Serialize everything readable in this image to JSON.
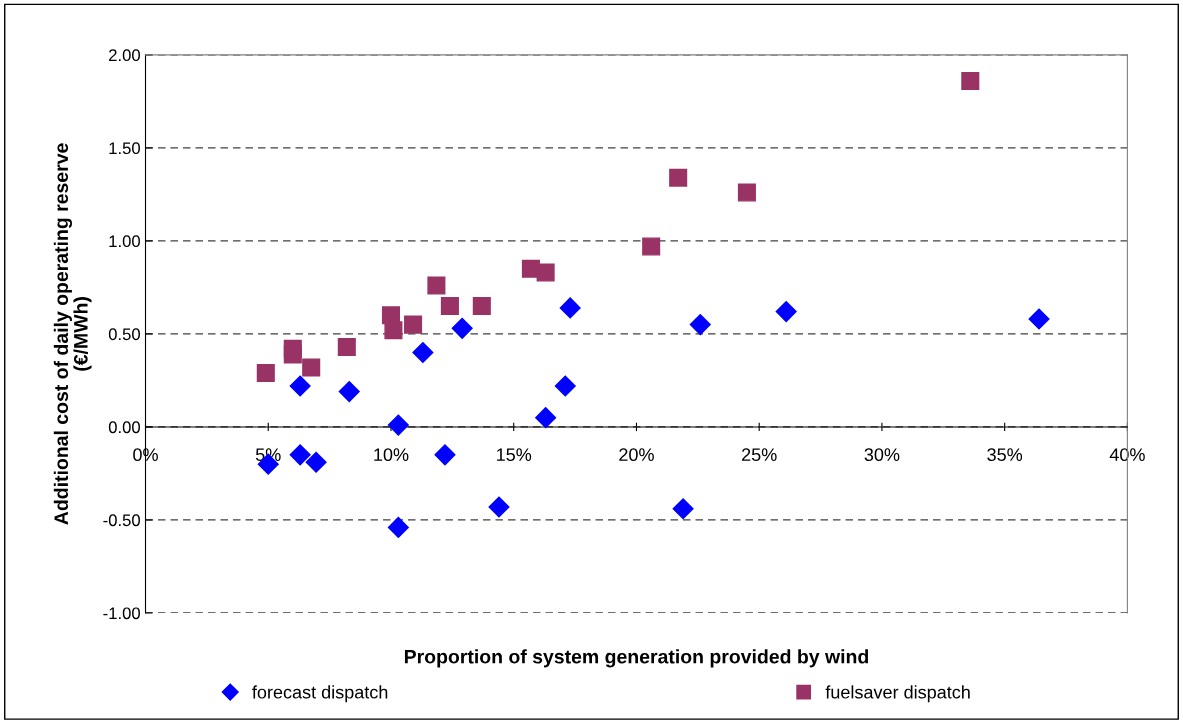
{
  "chart_data": {
    "type": "scatter",
    "xlabel": "Proportion of system generation provided by wind",
    "ylabel": "Additional cost of daily operating reserve\n(€/MWh)",
    "series": [
      {
        "name": "forecast dispatch",
        "color": "#0000ff",
        "marker": "diamond",
        "x": [
          5.0,
          6.3,
          6.3,
          6.95,
          8.3,
          10.3,
          10.3,
          11.3,
          12.2,
          12.9,
          14.4,
          16.3,
          17.3,
          17.1,
          22.6,
          26.1,
          36.4,
          21.9
        ],
        "values": [
          -0.2,
          0.22,
          -0.15,
          -0.19,
          0.19,
          0.01,
          -0.54,
          0.4,
          -0.15,
          0.53,
          -0.43,
          0.05,
          0.64,
          0.22,
          0.55,
          0.62,
          0.58,
          -0.44
        ]
      },
      {
        "name": "fuelsaver dispatch",
        "color": "#993366",
        "marker": "square",
        "x": [
          4.9,
          6.0,
          6.0,
          6.75,
          8.2,
          10.0,
          10.1,
          10.9,
          11.85,
          12.4,
          13.7,
          15.7,
          16.3,
          20.6,
          21.7,
          24.5,
          33.6
        ],
        "values": [
          0.29,
          0.42,
          0.39,
          0.32,
          0.43,
          0.6,
          0.52,
          0.55,
          0.76,
          0.65,
          0.65,
          0.85,
          0.83,
          0.97,
          1.34,
          1.26,
          1.86
        ]
      }
    ],
    "xlim": [
      0,
      40
    ],
    "xticks": [
      {
        "value": 0,
        "label": "0%"
      },
      {
        "value": 5,
        "label": "5%"
      },
      {
        "value": 10,
        "label": "10%"
      },
      {
        "value": 15,
        "label": "15%"
      },
      {
        "value": 20,
        "label": "20%"
      },
      {
        "value": 25,
        "label": "25%"
      },
      {
        "value": 30,
        "label": "30%"
      },
      {
        "value": 35,
        "label": "35%"
      },
      {
        "value": 40,
        "label": "40%"
      }
    ],
    "ylim": [
      -1.0,
      2.0
    ],
    "yticks": [
      {
        "value": -1.0,
        "label": "-1.00"
      },
      {
        "value": -0.5,
        "label": "-0.50"
      },
      {
        "value": 0,
        "label": "0.00"
      },
      {
        "value": 0.5,
        "label": "0.50"
      },
      {
        "value": 1.0,
        "label": "1.00"
      },
      {
        "value": 1.5,
        "label": "1.50"
      },
      {
        "value": 2.0,
        "label": "2.00"
      }
    ],
    "grid": "y",
    "legend": "bottom"
  }
}
